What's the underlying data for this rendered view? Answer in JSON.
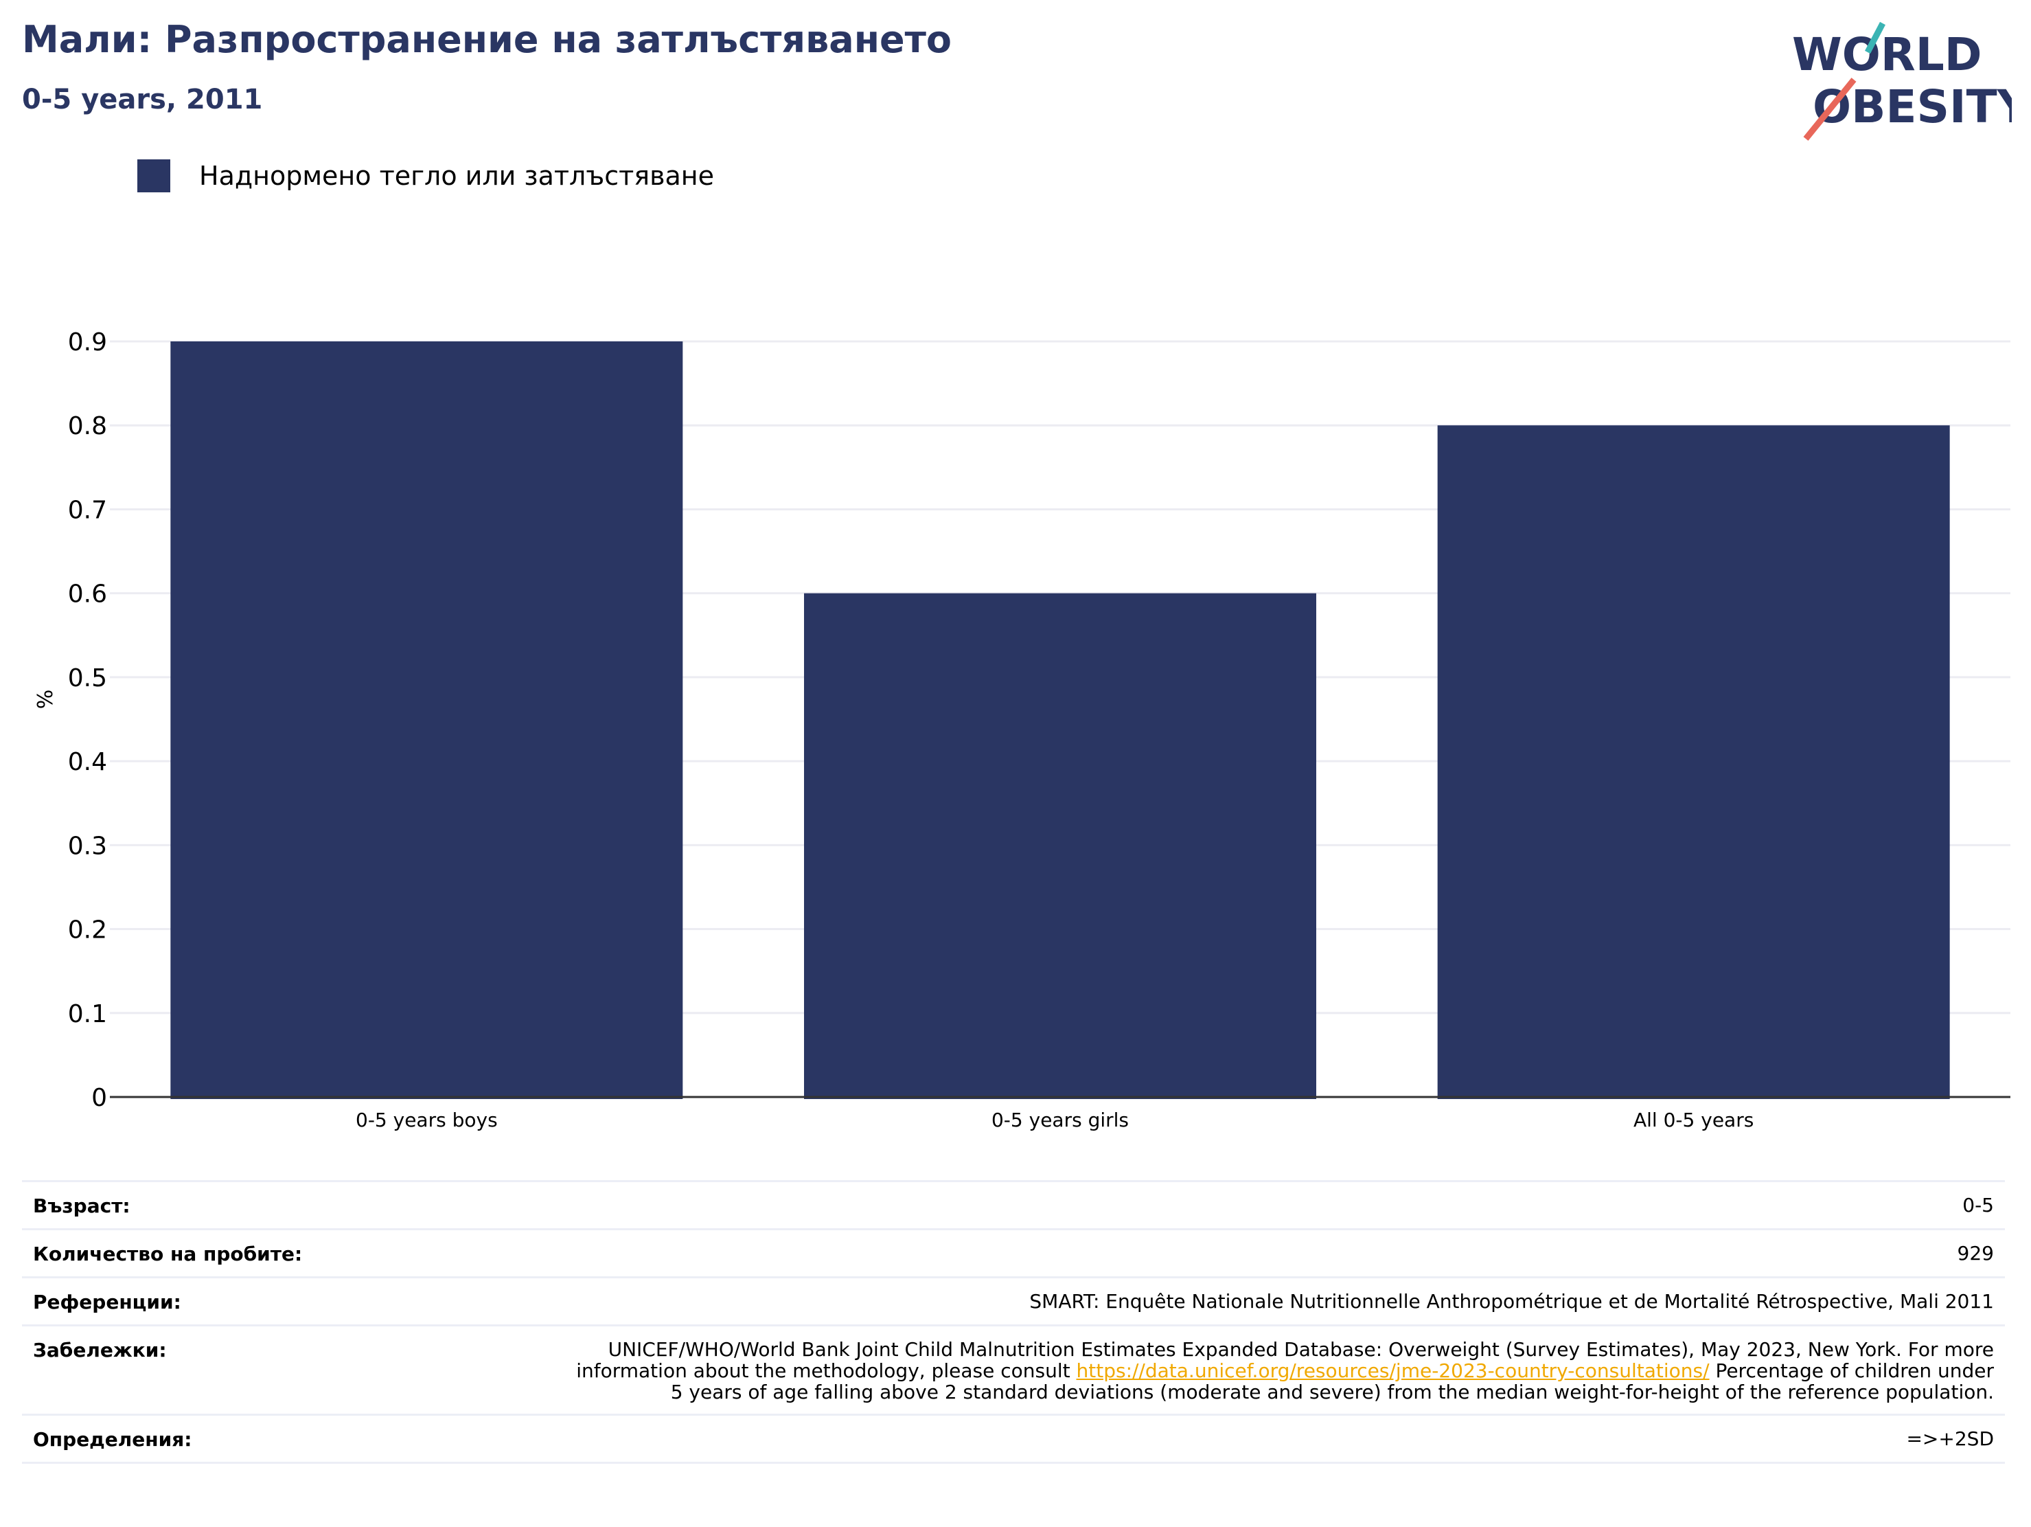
{
  "title": "Мали: Разпространение на затлъстяването",
  "subtitle": "0-5 years, 2011",
  "logo": {
    "line1": "WORLD",
    "line2": "OBESITY"
  },
  "legend": {
    "label": "Наднормено тегло или затлъстяване",
    "color": "#2a3663"
  },
  "chart_data": {
    "type": "bar",
    "categories": [
      "0-5 years boys",
      "0-5 years girls",
      "All 0-5 years"
    ],
    "series": [
      {
        "name": "Наднормено тегло или затлъстяване",
        "values": [
          0.9,
          0.6,
          0.8
        ],
        "color": "#2a3663"
      }
    ],
    "ylabel": "%",
    "ylim": [
      0,
      0.9
    ],
    "yticks": [
      "0",
      "0.1",
      "0.2",
      "0.3",
      "0.4",
      "0.5",
      "0.6",
      "0.7",
      "0.8",
      "0.9"
    ],
    "grid": true
  },
  "info": {
    "age_label": "Възраст:",
    "age_value": "0-5",
    "sample_label": "Количество на пробите:",
    "sample_value": "929",
    "refs_label": "Референции:",
    "refs_value": "SMART: Enquête Nationale Nutritionnelle Anthropométrique et de Mortalité Rétrospective, Mali 2011",
    "notes_label": "Забележки:",
    "notes_before": "UNICEF/WHO/World Bank Joint Child Malnutrition Estimates Expanded Database: Overweight (Survey Estimates), May 2023, New York. For more information about the methodology, please consult ",
    "notes_link": "https://data.unicef.org/resources/jme-2023-country-consultations/",
    "notes_after": " Percentage of children under 5 years of age falling above 2 standard deviations (moderate and severe) from the median weight-for-height of the reference population.",
    "defs_label": "Определения:",
    "defs_value": "=>+2SD"
  }
}
